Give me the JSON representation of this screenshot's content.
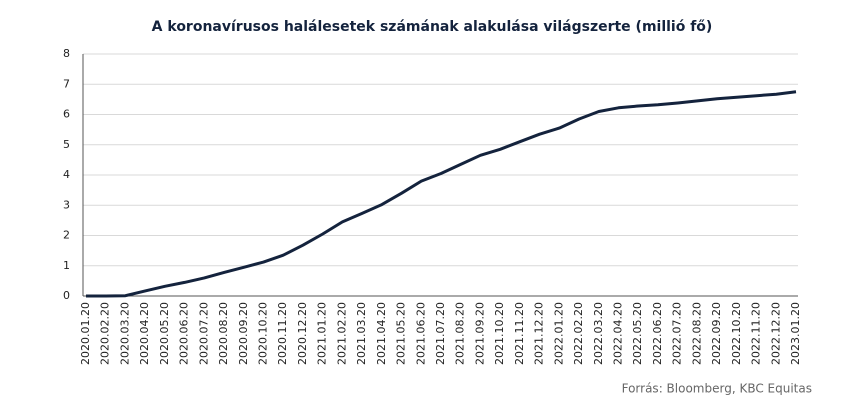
{
  "chart_data": {
    "type": "line",
    "title": "A koronavírusos halálesetek számának alakulása világszerte (millió fő)",
    "source": "Forrás: Bloomberg,  KBC Equitas",
    "categories": [
      "2020.01.20",
      "2020.02.20",
      "2020.03.20",
      "2020.04.20",
      "2020.05.20",
      "2020.06.20",
      "2020.07.20",
      "2020.08.20",
      "2020.09.20",
      "2020.10.20",
      "2020.11.20",
      "2020.12.20",
      "2021.01.20",
      "2021.02.20",
      "2021.03.20",
      "2021.04.20",
      "2021.05.20",
      "2021.06.20",
      "2021.07.20",
      "2021.08.20",
      "2021.09.20",
      "2021.10.20",
      "2021.11.20",
      "2021.12.20",
      "2022.01.20",
      "2022.02.20",
      "2022.03.20",
      "2022.04.20",
      "2022.05.20",
      "2022.06.20",
      "2022.07.20",
      "2022.08.20",
      "2022.09.20",
      "2022.10.20",
      "2022.11.20",
      "2022.12.20",
      "2023.01.20"
    ],
    "values": [
      0,
      0,
      0.01,
      0.17,
      0.32,
      0.45,
      0.6,
      0.78,
      0.95,
      1.12,
      1.35,
      1.68,
      2.05,
      2.45,
      2.73,
      3.02,
      3.4,
      3.8,
      4.05,
      4.35,
      4.65,
      4.85,
      5.1,
      5.35,
      5.55,
      5.85,
      6.1,
      6.22,
      6.28,
      6.32,
      6.38,
      6.45,
      6.52,
      6.57,
      6.62,
      6.67,
      6.75
    ],
    "color": "#14233d",
    "ylim": [
      0,
      8
    ],
    "yticks": [
      0,
      1,
      2,
      3,
      4,
      5,
      6,
      7,
      8
    ],
    "grid": true
  }
}
